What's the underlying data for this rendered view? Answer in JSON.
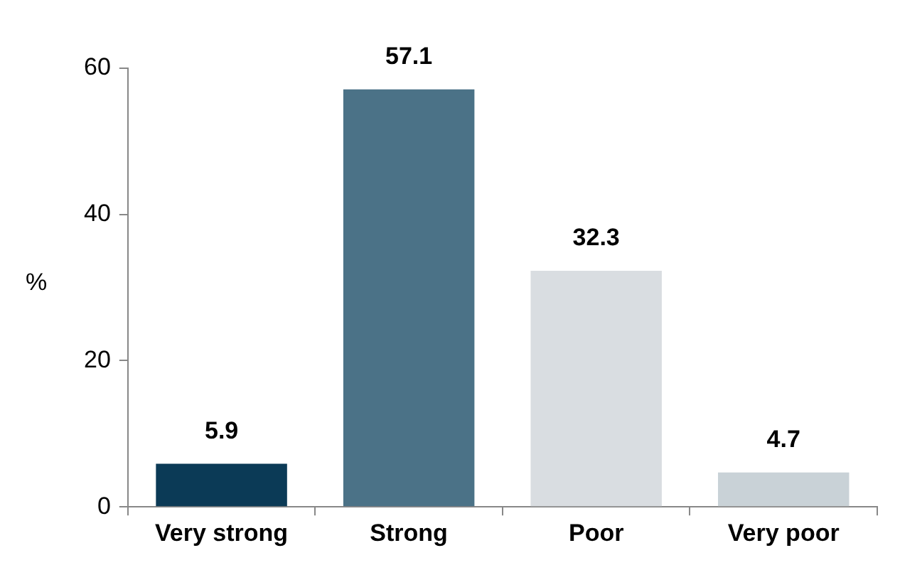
{
  "chart_data": {
    "type": "bar",
    "ylabel": "%",
    "categories": [
      "Very strong",
      "Strong",
      "Poor",
      "Very poor"
    ],
    "values": [
      5.9,
      57.1,
      32.3,
      4.7
    ],
    "colors": [
      "#0b3a56",
      "#4b7287",
      "#d9dde1",
      "#c9d2d7"
    ],
    "ylim": [
      0,
      60
    ],
    "yticks": [
      0,
      20,
      40,
      60
    ],
    "grid": false,
    "legend": false,
    "data_labels": true
  }
}
